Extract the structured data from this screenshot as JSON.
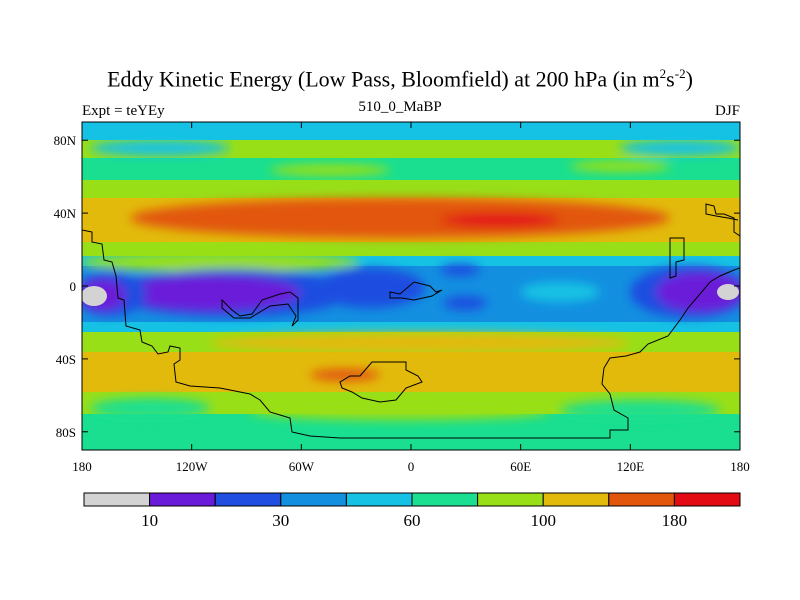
{
  "title": {
    "main": "Eddy Kinetic Energy (Low Pass, Bloomfield) at 200 hPa (in m",
    "sup1": "2",
    "mid": "s",
    "sup2": "-2",
    "end": ")"
  },
  "left_label": "Expt = teYEy",
  "center_label": "510_0_MaBP",
  "right_label": "DJF",
  "axes": {
    "x_ticks": [
      "180",
      "120W",
      "60W",
      "0",
      "60E",
      "120E",
      "180"
    ],
    "y_ticks": [
      "80N",
      "40N",
      "0",
      "40S",
      "80S"
    ]
  },
  "colorbar": {
    "colors": [
      "#d3d3d3",
      "#6a1bd9",
      "#1f4ee0",
      "#138fe0",
      "#16c2e4",
      "#1adf90",
      "#98df18",
      "#e2ba0c",
      "#e2560c",
      "#e30a14"
    ],
    "labels": [
      "10",
      "30",
      "60",
      "100",
      "180"
    ]
  }
}
